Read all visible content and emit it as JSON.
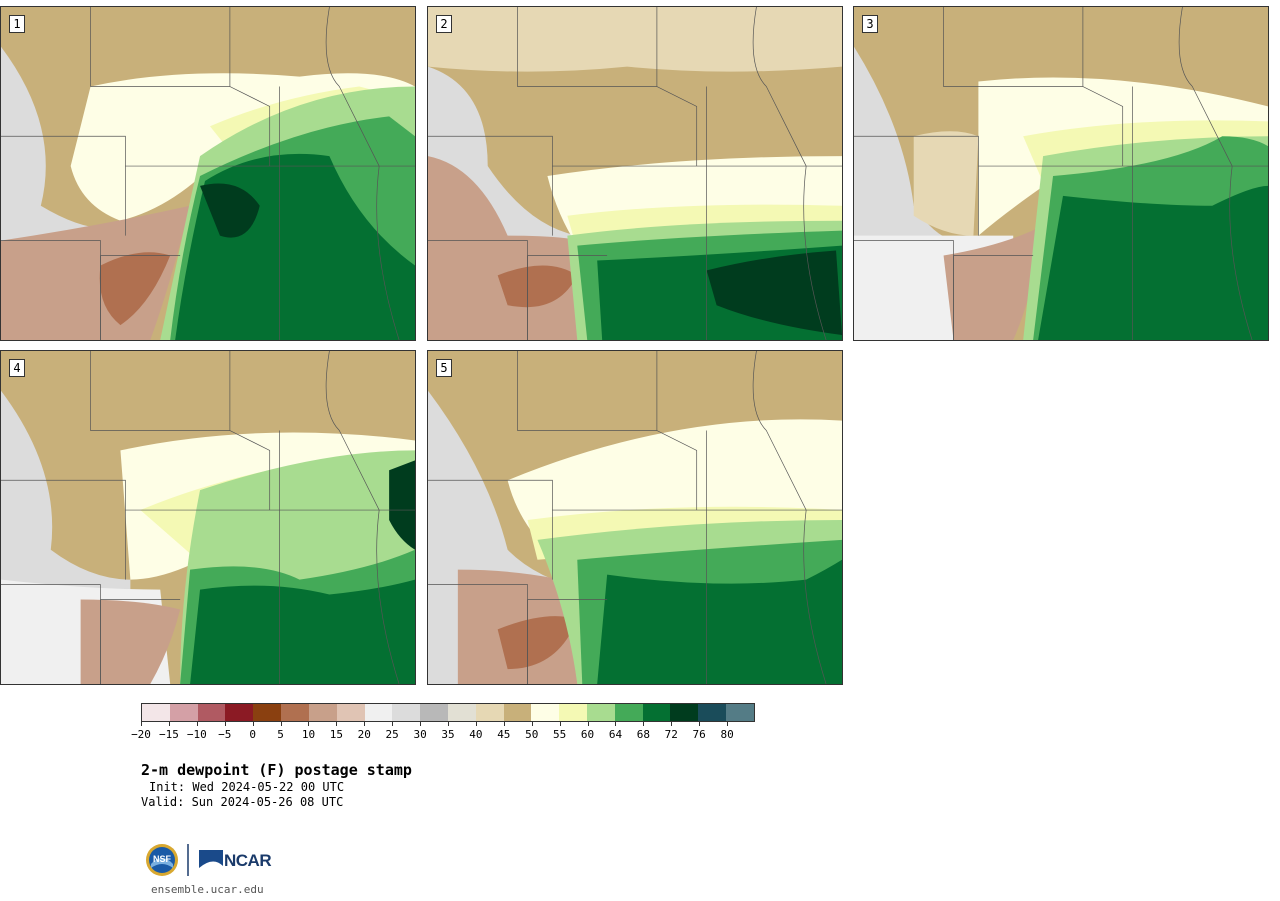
{
  "panels": [
    {
      "label": "1",
      "row": 0,
      "col": 0,
      "variant": 1
    },
    {
      "label": "2",
      "row": 0,
      "col": 1,
      "variant": 2
    },
    {
      "label": "3",
      "row": 0,
      "col": 2,
      "variant": 3
    },
    {
      "label": "4",
      "row": 1,
      "col": 0,
      "variant": 4
    },
    {
      "label": "5",
      "row": 1,
      "col": 1,
      "variant": 5
    }
  ],
  "colorbar": {
    "colors": [
      "#f3e6e8",
      "#d4a0a6",
      "#b05a62",
      "#8b1a24",
      "#8a4010",
      "#b07050",
      "#c8a08a",
      "#e0c4b4",
      "#f0f0f0",
      "#dcdcdc",
      "#b8b8b8",
      "#e2e0d4",
      "#e6d8b4",
      "#c8b07a",
      "#fefee6",
      "#f4f9b4",
      "#a8dc90",
      "#44aa58",
      "#047032",
      "#003c1e",
      "#1a4c5a",
      "#547c86"
    ],
    "tick_labels": [
      "−20",
      "−15",
      "−10",
      "−5",
      "0",
      "5",
      "10",
      "15",
      "20",
      "25",
      "30",
      "35",
      "40",
      "45",
      "50",
      "55",
      "60",
      "64",
      "68",
      "72",
      "76",
      "80"
    ]
  },
  "title": "2-m dewpoint (F) postage stamp",
  "init": "Init: Wed 2024-05-22 00 UTC",
  "valid": "Valid: Sun 2024-05-26 08 UTC",
  "logo_text": "NCAR",
  "logo_seal_text": "NSF",
  "site": "ensemble.ucar.edu"
}
